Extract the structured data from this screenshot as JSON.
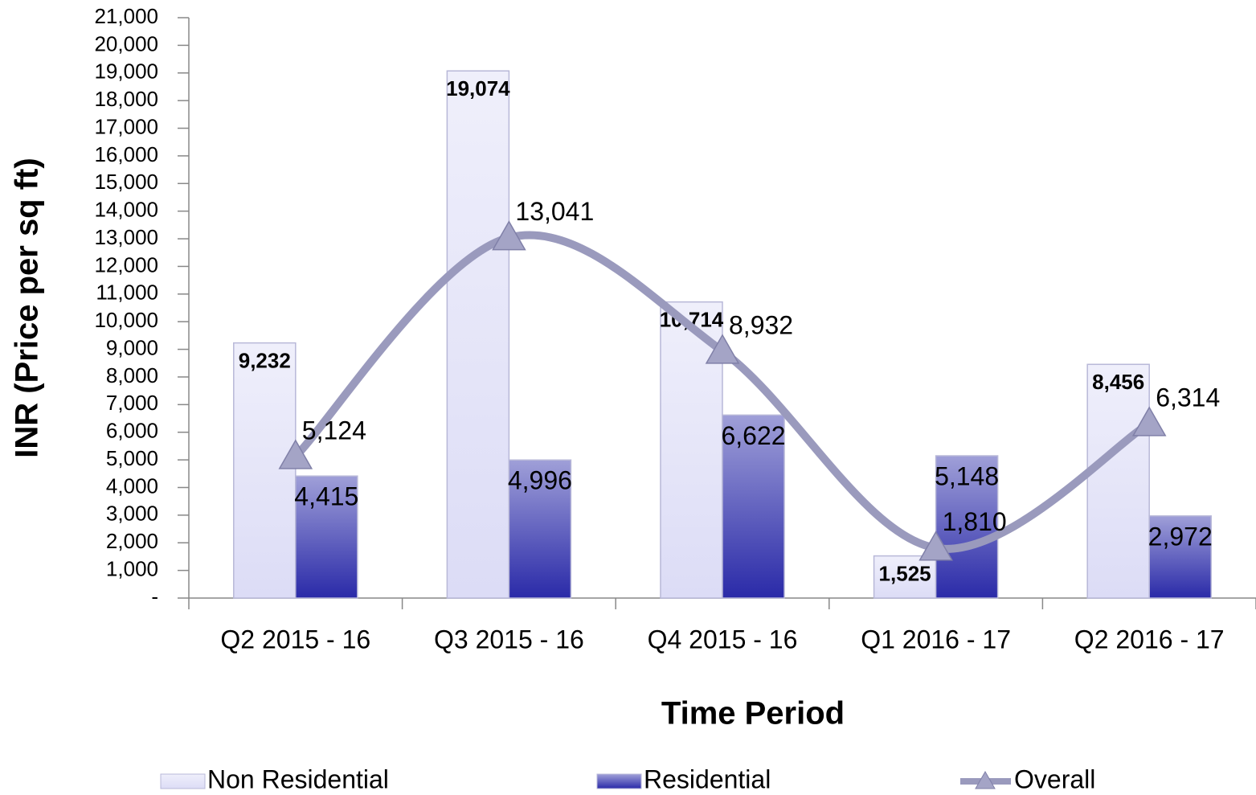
{
  "chart_data": {
    "type": "bar_line",
    "xlabel": "Time Period",
    "ylabel": "INR (Price per sq ft)",
    "categories": [
      "Q2 2015 - 16",
      "Q3 2015 - 16",
      "Q4 2015 - 16",
      "Q1 2016 - 17",
      "Q2 2016 - 17"
    ],
    "series": [
      {
        "name": "Non Residential",
        "type": "bar",
        "color": "#dcdcf6",
        "values": [
          9232,
          19074,
          10714,
          1525,
          8456
        ],
        "value_labels": [
          "9,232",
          "19,074",
          "10,714",
          "1,525",
          "8,456"
        ]
      },
      {
        "name": "Residential",
        "type": "bar",
        "color": "#2a2aa8",
        "values": [
          4415,
          4996,
          6622,
          5148,
          2972
        ],
        "value_labels": [
          "4,415",
          "4,996",
          "6,622",
          "5,148",
          "2,972"
        ]
      },
      {
        "name": "Overall",
        "type": "line",
        "color": "#9a9abd",
        "values": [
          5124,
          13041,
          8932,
          1810,
          6314
        ],
        "value_labels": [
          "5,124",
          "13,041",
          "8,932",
          "1,810",
          "6,314"
        ]
      }
    ],
    "ylim": [
      0,
      21000
    ],
    "yticks": [
      {
        "value": 0,
        "label": "-"
      },
      {
        "value": 1000,
        "label": "1,000"
      },
      {
        "value": 2000,
        "label": "2,000"
      },
      {
        "value": 3000,
        "label": "3,000"
      },
      {
        "value": 4000,
        "label": "4,000"
      },
      {
        "value": 5000,
        "label": "5,000"
      },
      {
        "value": 6000,
        "label": "6,000"
      },
      {
        "value": 7000,
        "label": "7,000"
      },
      {
        "value": 8000,
        "label": "8,000"
      },
      {
        "value": 9000,
        "label": "9,000"
      },
      {
        "value": 10000,
        "label": "10,000"
      },
      {
        "value": 11000,
        "label": "11,000"
      },
      {
        "value": 12000,
        "label": "12,000"
      },
      {
        "value": 13000,
        "label": "13,000"
      },
      {
        "value": 14000,
        "label": "14,000"
      },
      {
        "value": 15000,
        "label": "15,000"
      },
      {
        "value": 16000,
        "label": "16,000"
      },
      {
        "value": 17000,
        "label": "17,000"
      },
      {
        "value": 18000,
        "label": "18,000"
      },
      {
        "value": 19000,
        "label": "19,000"
      },
      {
        "value": 20000,
        "label": "20,000"
      },
      {
        "value": 21000,
        "label": "21,000"
      }
    ],
    "grid": false,
    "legend": "bottom"
  }
}
